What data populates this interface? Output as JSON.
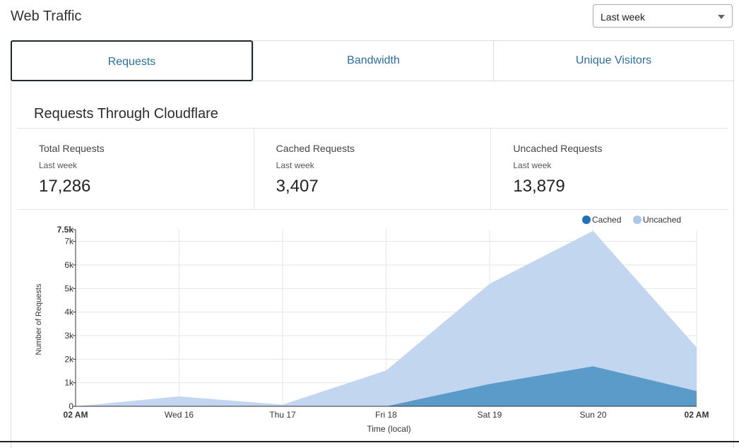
{
  "header": {
    "title": "Web Traffic"
  },
  "range_select": {
    "value": "Last week"
  },
  "tabs": [
    {
      "label": "Requests"
    },
    {
      "label": "Bandwidth"
    },
    {
      "label": "Unique Visitors"
    }
  ],
  "panel": {
    "title": "Requests Through Cloudflare",
    "stats": [
      {
        "label": "Total Requests",
        "period": "Last week",
        "value": "17,286"
      },
      {
        "label": "Cached Requests",
        "period": "Last week",
        "value": "3,407"
      },
      {
        "label": "Uncached Requests",
        "period": "Last week",
        "value": "13,879"
      }
    ]
  },
  "colors": {
    "cached": "#5b9bc9",
    "uncached": "#c3d6ef",
    "legend_cached": "#2171b5",
    "legend_uncached": "#aec7e8",
    "tab_text": "#2f6d9a"
  },
  "chart_data": {
    "type": "area",
    "stacked": true,
    "ylabel": "Number of Requests",
    "xlabel": "Time (local)",
    "x_ticks": [
      "02 AM",
      "Wed 16",
      "Thu 17",
      "Fri 18",
      "Sat 19",
      "Sun 20",
      "02 AM"
    ],
    "y_ticks": [
      "0",
      "1k",
      "2k",
      "3k",
      "4k",
      "5k",
      "6k",
      "7k",
      "7.5k"
    ],
    "ylim": [
      0,
      7500
    ],
    "legend": {
      "position": "top-right"
    },
    "grid": true,
    "series": [
      {
        "name": "Cached",
        "values": [
          0,
          0,
          0,
          0,
          950,
          1700,
          650
        ]
      },
      {
        "name": "Uncached",
        "values": [
          0,
          420,
          70,
          1520,
          4250,
          5750,
          1850
        ]
      }
    ]
  }
}
